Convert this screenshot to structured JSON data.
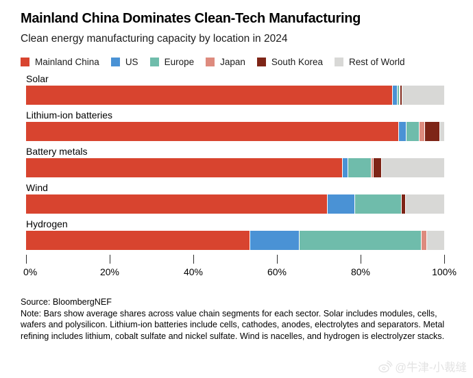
{
  "header": {
    "title": "Mainland China Dominates Clean-Tech Manufacturing",
    "subtitle": "Clean energy manufacturing capacity by location in 2024"
  },
  "legend": [
    {
      "label": "Mainland China",
      "color": "#d8442f"
    },
    {
      "label": "US",
      "color": "#4a92d5"
    },
    {
      "label": "Europe",
      "color": "#6fbcab"
    },
    {
      "label": "Japan",
      "color": "#de8b7e"
    },
    {
      "label": "South Korea",
      "color": "#7e2517"
    },
    {
      "label": "Rest of World",
      "color": "#d8d8d6"
    }
  ],
  "chart_data": {
    "type": "bar",
    "orientation": "horizontal",
    "stacked": true,
    "unit": "percent",
    "title": "Mainland China Dominates Clean-Tech Manufacturing",
    "subtitle": "Clean energy manufacturing capacity by location in 2024",
    "categories": [
      "Solar",
      "Lithium-ion batteries",
      "Battery metals",
      "Wind",
      "Hydrogen"
    ],
    "series": [
      {
        "name": "Mainland China",
        "color": "#d8442f",
        "values": [
          87.6,
          89.0,
          75.5,
          72.0,
          53.5
        ]
      },
      {
        "name": "US",
        "color": "#4a92d5",
        "values": [
          1.1,
          1.8,
          1.4,
          6.5,
          11.7
        ]
      },
      {
        "name": "Europe",
        "color": "#6fbcab",
        "values": [
          0.4,
          3.2,
          5.6,
          11.2,
          29.2
        ]
      },
      {
        "name": "Japan",
        "color": "#de8b7e",
        "values": [
          0.3,
          1.2,
          0.5,
          0.0,
          1.4
        ]
      },
      {
        "name": "South Korea",
        "color": "#7e2517",
        "values": [
          0.4,
          3.7,
          1.9,
          0.9,
          0.0
        ]
      },
      {
        "name": "Rest of World",
        "color": "#d8d8d6",
        "values": [
          10.2,
          1.1,
          15.1,
          9.4,
          4.2
        ]
      }
    ],
    "x_axis": {
      "tick_labels": [
        "0%",
        "20%",
        "40%",
        "60%",
        "80%",
        "100%"
      ],
      "range": [
        0,
        100
      ]
    },
    "legend_position": "top",
    "grid": false
  },
  "footer": {
    "source": "Source: BloombergNEF",
    "note": "Note: Bars show average shares across value chain segments for each sector. Solar includes modules, cells, wafers and polysilicon. Lithium-ion batteries include cells, cathodes, anodes, electrolytes and separators. Metal refining includes lithium, cobalt sulfate and nickel sulfate. Wind is nacelles, and hydrogen is electrolyzer stacks.",
    "watermark": "@牛津-小裁缝"
  }
}
